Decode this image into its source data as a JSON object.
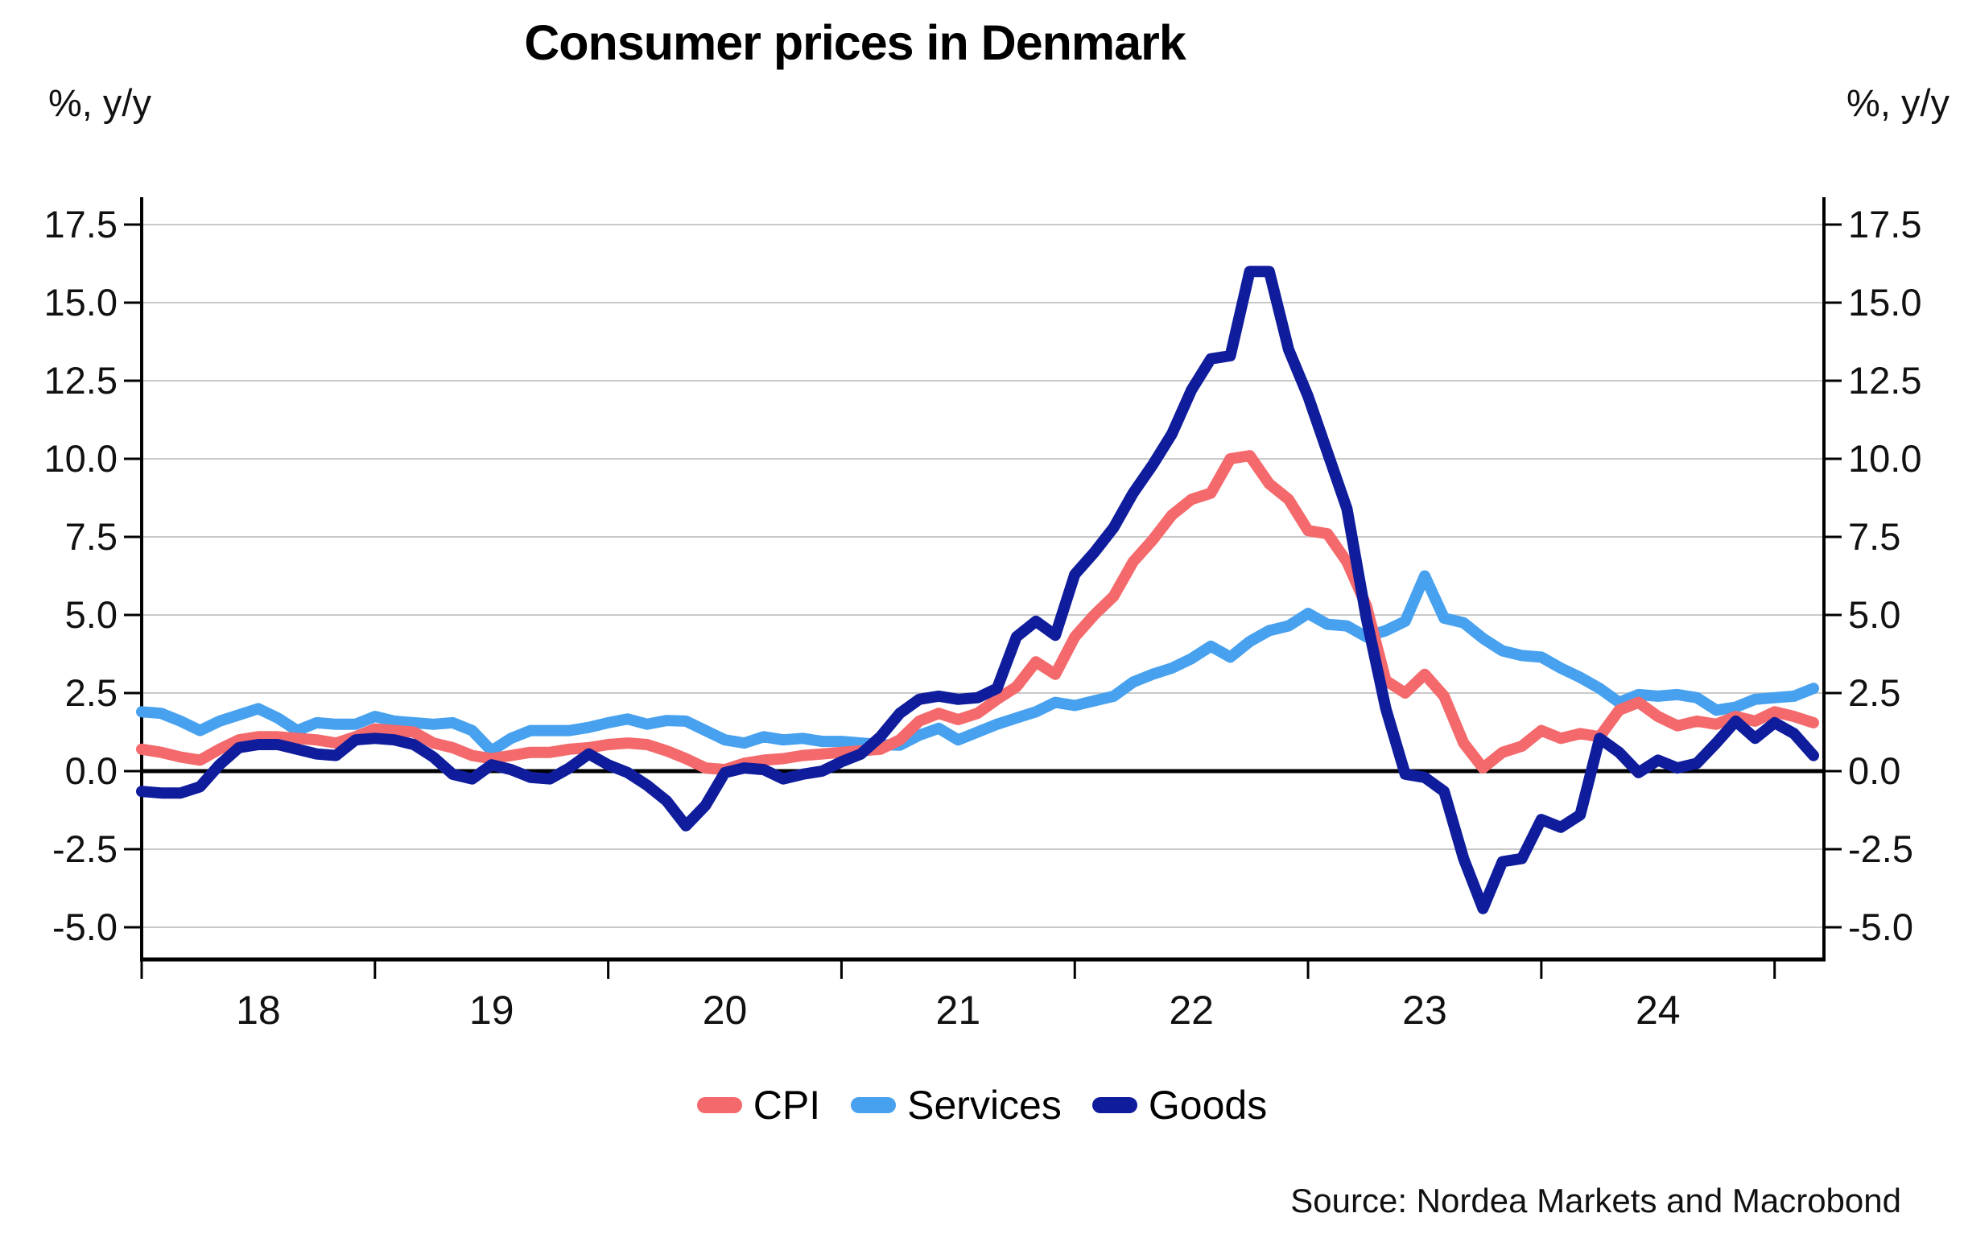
{
  "title": "Consumer prices in Denmark",
  "source": "Source: Nordea Markets and Macrobond",
  "y_axis": {
    "unit_label": "%, y/y",
    "unit_label_right": "%, y/y",
    "tick_labels": [
      "17.5",
      "15.0",
      "12.5",
      "10.0",
      "7.5",
      "5.0",
      "2.5",
      "0.0",
      "-2.5",
      "-5.0"
    ]
  },
  "x_axis": {
    "tick_years": [
      2018,
      2019,
      2020,
      2021,
      2022,
      2023,
      2024,
      2025
    ],
    "year_labels": [
      "18",
      "19",
      "20",
      "21",
      "22",
      "23",
      "24"
    ]
  },
  "legend": {
    "items": [
      {
        "label": "CPI"
      },
      {
        "label": "Services"
      },
      {
        "label": "Goods"
      }
    ]
  },
  "chart_data": {
    "type": "line",
    "title": "Consumer prices in Denmark",
    "ylabel": "%, y/y",
    "ylim": [
      -6.0,
      18.4
    ],
    "grid": true,
    "legend_position": "bottom",
    "frequency": "monthly",
    "x_start": "2018-01",
    "x_end": "2025-03",
    "series": [
      {
        "name": "CPI",
        "color": "#f4696b",
        "values": [
          0.7,
          0.6,
          0.45,
          0.35,
          0.7,
          1.0,
          1.1,
          1.1,
          1.05,
          1.0,
          0.9,
          1.1,
          1.35,
          1.3,
          1.25,
          0.9,
          0.75,
          0.5,
          0.4,
          0.5,
          0.6,
          0.6,
          0.7,
          0.75,
          0.85,
          0.9,
          0.85,
          0.65,
          0.4,
          0.1,
          0.05,
          0.25,
          0.35,
          0.4,
          0.5,
          0.55,
          0.6,
          0.65,
          0.7,
          1.0,
          1.6,
          1.85,
          1.65,
          1.85,
          2.3,
          2.7,
          3.5,
          3.1,
          4.3,
          5.0,
          5.6,
          6.7,
          7.4,
          8.2,
          8.7,
          8.9,
          10.0,
          10.1,
          9.2,
          8.7,
          7.7,
          7.6,
          6.7,
          5.3,
          2.9,
          2.5,
          3.1,
          2.4,
          0.9,
          0.1,
          0.6,
          0.8,
          1.3,
          1.05,
          1.2,
          1.1,
          1.95,
          2.2,
          1.75,
          1.45,
          1.6,
          1.5,
          1.75,
          1.6,
          1.9,
          1.75,
          1.55
        ]
      },
      {
        "name": "Services",
        "color": "#47a1ee",
        "values": [
          1.9,
          1.85,
          1.6,
          1.3,
          1.6,
          1.8,
          2.0,
          1.7,
          1.3,
          1.55,
          1.5,
          1.5,
          1.75,
          1.6,
          1.55,
          1.5,
          1.55,
          1.3,
          0.65,
          1.05,
          1.3,
          1.3,
          1.3,
          1.4,
          1.55,
          1.67,
          1.5,
          1.62,
          1.6,
          1.3,
          1.0,
          0.9,
          1.1,
          1.0,
          1.05,
          0.95,
          0.95,
          0.9,
          0.85,
          0.83,
          1.15,
          1.37,
          1.0,
          1.25,
          1.5,
          1.7,
          1.9,
          2.2,
          2.1,
          2.25,
          2.4,
          2.85,
          3.1,
          3.3,
          3.6,
          4.0,
          3.65,
          4.15,
          4.5,
          4.65,
          5.05,
          4.7,
          4.65,
          4.3,
          4.5,
          4.8,
          6.25,
          4.9,
          4.75,
          4.25,
          3.85,
          3.7,
          3.65,
          3.3,
          3.0,
          2.65,
          2.2,
          2.45,
          2.4,
          2.45,
          2.35,
          1.95,
          2.05,
          2.3,
          2.35,
          2.4,
          2.65
        ]
      },
      {
        "name": "Goods",
        "color": "#0f1c9c",
        "values": [
          -0.65,
          -0.7,
          -0.7,
          -0.5,
          0.2,
          0.75,
          0.85,
          0.85,
          0.7,
          0.55,
          0.5,
          1.0,
          1.05,
          1.0,
          0.85,
          0.45,
          -0.1,
          -0.25,
          0.2,
          0.05,
          -0.2,
          -0.25,
          0.1,
          0.55,
          0.2,
          -0.05,
          -0.45,
          -0.95,
          -1.75,
          -1.1,
          -0.05,
          0.1,
          0.05,
          -0.25,
          -0.1,
          0.0,
          0.3,
          0.55,
          1.1,
          1.85,
          2.3,
          2.4,
          2.3,
          2.35,
          2.65,
          4.3,
          4.8,
          4.35,
          6.3,
          7.0,
          7.8,
          8.9,
          9.8,
          10.8,
          12.2,
          13.2,
          13.3,
          16.0,
          16.0,
          13.5,
          12.0,
          10.2,
          8.4,
          4.9,
          2.0,
          -0.1,
          -0.2,
          -0.65,
          -2.8,
          -4.4,
          -2.9,
          -2.8,
          -1.55,
          -1.8,
          -1.4,
          1.05,
          0.6,
          -0.05,
          0.35,
          0.1,
          0.25,
          0.9,
          1.6,
          1.05,
          1.55,
          1.2,
          0.5
        ]
      }
    ]
  }
}
